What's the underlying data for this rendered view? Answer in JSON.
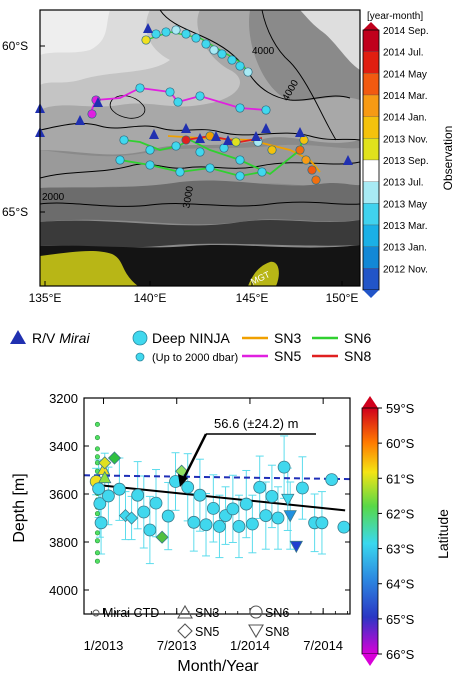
{
  "map": {
    "lat_ticks": [
      "60°S",
      "65°S"
    ],
    "lon_ticks": [
      "135°E",
      "140°E",
      "145°E",
      "150°E"
    ],
    "contour_labels": [
      "4000",
      "4000",
      "3000",
      "2000"
    ],
    "land_label": "MGT"
  },
  "colorbar_top": {
    "unit": "[year-month]",
    "title": "Observation",
    "labels": [
      "2014 Sep.",
      "2014 Jul.",
      "2014 May",
      "2014 Mar.",
      "2014 Jan.",
      "2013 Nov.",
      "2013 Sep.",
      "2013 Jul.",
      "2013 May",
      "2013 Mar.",
      "2013 Jan.",
      "2012 Nov."
    ],
    "colors": [
      "#c0001c",
      "#e01e10",
      "#f25a10",
      "#f79a14",
      "#f4c20c",
      "#e0e21c",
      "#ffffff",
      "#a8eaf4",
      "#40d2ee",
      "#1ab0e6",
      "#1288d6",
      "#2255c8"
    ]
  },
  "legend_top": {
    "mirai": "R/V",
    "mirai_italic": "Mirai",
    "deep_ninja": "Deep NINJA",
    "up_to": "(Up to 2000 dbar)",
    "sn3": "SN3",
    "sn5": "SN5",
    "sn6": "SN6",
    "sn8": "SN8",
    "colors": {
      "sn3": "#f0a000",
      "sn5": "#e020e0",
      "sn6": "#30d030",
      "sn8": "#e02020",
      "mirai": "#2030b0",
      "float": "#40d8ee"
    }
  },
  "chart_data": {
    "type": "scatter",
    "xlabel": "Month/Year",
    "ylabel": "Depth [m]",
    "x_ticks": [
      "1/2013",
      "7/2013",
      "1/2014",
      "7/2014"
    ],
    "x_tick_months": [
      0,
      6,
      12,
      18
    ],
    "xlim": [
      -1.6,
      20.2
    ],
    "y_ticks": [
      3200,
      3400,
      3600,
      3800,
      4000
    ],
    "ylim": [
      3200,
      4100
    ],
    "y_inverted": true,
    "annotation": "56.6 (±24.2) m",
    "trend_solid": {
      "x": [
        -0.6,
        19.8
      ],
      "y": [
        3562,
        3668
      ]
    },
    "trend_dashed": {
      "x": [
        -1.6,
        20.2
      ],
      "y": [
        3522,
        3538
      ]
    },
    "mirai_ctd": {
      "x": -0.5,
      "y": [
        3310,
        3365,
        3412,
        3445,
        3470,
        3505,
        3528,
        3548,
        3572,
        3598,
        3625,
        3655,
        3682,
        3718,
        3762,
        3795,
        3845,
        3880
      ]
    },
    "points": [
      {
        "x": -0.6,
        "y": 3548,
        "shape": "circle",
        "color": "#f0e020",
        "err": 55
      },
      {
        "x": -0.4,
        "y": 3578,
        "shape": "circle",
        "color": "#40d8ee",
        "err": 120
      },
      {
        "x": -0.3,
        "y": 3640,
        "shape": "circle",
        "color": "#40d8ee",
        "err": 140
      },
      {
        "x": -0.2,
        "y": 3720,
        "shape": "circle",
        "color": "#40d8ee",
        "err": 130
      },
      {
        "x": 0.0,
        "y": 3498,
        "shape": "triangle-up",
        "color": "#f0e020",
        "err": 35
      },
      {
        "x": 0.1,
        "y": 3532,
        "shape": "triangle-up",
        "color": "#90e040",
        "err": 35
      },
      {
        "x": 0.1,
        "y": 3470,
        "shape": "diamond",
        "color": "#e0e020",
        "err": 40
      },
      {
        "x": 0.4,
        "y": 3608,
        "shape": "circle",
        "color": "#40d8ee",
        "err": 120
      },
      {
        "x": 0.9,
        "y": 3450,
        "shape": "diamond",
        "color": "#30c040",
        "err": 0
      },
      {
        "x": 1.3,
        "y": 3580,
        "shape": "circle",
        "color": "#40d8ee",
        "err": 130
      },
      {
        "x": 1.8,
        "y": 3690,
        "shape": "diamond",
        "color": "#40d8ee",
        "err": 100
      },
      {
        "x": 2.3,
        "y": 3700,
        "shape": "diamond",
        "color": "#40d8ee",
        "err": 90
      },
      {
        "x": 2.8,
        "y": 3605,
        "shape": "circle",
        "color": "#40d8ee",
        "err": 140
      },
      {
        "x": 3.3,
        "y": 3675,
        "shape": "circle",
        "color": "#40d8ee",
        "err": 150
      },
      {
        "x": 3.8,
        "y": 3750,
        "shape": "circle",
        "color": "#40d8ee",
        "err": 140
      },
      {
        "x": 4.3,
        "y": 3638,
        "shape": "circle",
        "color": "#40d8ee",
        "err": 140
      },
      {
        "x": 4.8,
        "y": 3780,
        "shape": "diamond",
        "color": "#50c040",
        "err": 0
      },
      {
        "x": 5.3,
        "y": 3692,
        "shape": "circle",
        "color": "#40d8ee",
        "err": 140
      },
      {
        "x": 5.9,
        "y": 3548,
        "shape": "circle",
        "color": "#40d8ee",
        "err": 120
      },
      {
        "x": 6.4,
        "y": 3505,
        "shape": "diamond",
        "color": "#90e060",
        "err": 0
      },
      {
        "x": 6.9,
        "y": 3572,
        "shape": "circle",
        "color": "#40d8ee",
        "err": 140
      },
      {
        "x": 7.4,
        "y": 3718,
        "shape": "circle",
        "color": "#40d8ee",
        "err": 120
      },
      {
        "x": 7.9,
        "y": 3605,
        "shape": "circle",
        "color": "#40d8ee",
        "err": 150
      },
      {
        "x": 8.4,
        "y": 3728,
        "shape": "circle",
        "color": "#40d8ee",
        "err": 130
      },
      {
        "x": 9.0,
        "y": 3660,
        "shape": "circle",
        "color": "#40d8ee",
        "err": 140
      },
      {
        "x": 9.5,
        "y": 3735,
        "shape": "circle",
        "color": "#40d8ee",
        "err": 130
      },
      {
        "x": 10.0,
        "y": 3690,
        "shape": "circle",
        "color": "#40d8ee",
        "err": 120
      },
      {
        "x": 10.6,
        "y": 3662,
        "shape": "circle",
        "color": "#40d8ee",
        "err": 140
      },
      {
        "x": 11.1,
        "y": 3735,
        "shape": "circle",
        "color": "#40d8ee",
        "err": 130
      },
      {
        "x": 11.7,
        "y": 3642,
        "shape": "circle",
        "color": "#40d8ee",
        "err": 140
      },
      {
        "x": 12.2,
        "y": 3725,
        "shape": "circle",
        "color": "#40d8ee",
        "err": 120
      },
      {
        "x": 12.8,
        "y": 3572,
        "shape": "circle",
        "color": "#40d8ee",
        "err": 130
      },
      {
        "x": 13.3,
        "y": 3690,
        "shape": "circle",
        "color": "#40d8ee",
        "err": 140
      },
      {
        "x": 13.8,
        "y": 3610,
        "shape": "circle",
        "color": "#40d8ee",
        "err": 130
      },
      {
        "x": 14.3,
        "y": 3700,
        "shape": "circle",
        "color": "#40d8ee",
        "err": 130
      },
      {
        "x": 14.8,
        "y": 3488,
        "shape": "circle",
        "color": "#40d8ee",
        "err": 130
      },
      {
        "x": 15.1,
        "y": 3622,
        "shape": "triangle-down",
        "color": "#40d8ee",
        "err": 130
      },
      {
        "x": 15.3,
        "y": 3690,
        "shape": "triangle-down",
        "color": "#2090e0",
        "err": 140
      },
      {
        "x": 15.8,
        "y": 3818,
        "shape": "triangle-down",
        "color": "#2040d0",
        "err": 0
      },
      {
        "x": 16.3,
        "y": 3575,
        "shape": "circle",
        "color": "#40d8ee",
        "err": 130
      },
      {
        "x": 17.3,
        "y": 3720,
        "shape": "circle",
        "color": "#40d8ee",
        "err": 120
      },
      {
        "x": 17.9,
        "y": 3720,
        "shape": "circle",
        "color": "#40d8ee",
        "err": 130
      },
      {
        "x": 18.7,
        "y": 3540,
        "shape": "circle",
        "color": "#40d8ee",
        "err": 0
      },
      {
        "x": 19.7,
        "y": 3738,
        "shape": "circle",
        "color": "#40d8ee",
        "err": 0
      }
    ],
    "legend": {
      "mirai": "Mirai CTD",
      "sn3": "SN3",
      "sn5": "SN5",
      "sn6": "SN6",
      "sn8": "SN8"
    },
    "colorbar": {
      "title": "Latitude",
      "labels": [
        "59°S",
        "60°S",
        "61°S",
        "62°S",
        "63°S",
        "64°S",
        "65°S",
        "66°S"
      ]
    }
  }
}
